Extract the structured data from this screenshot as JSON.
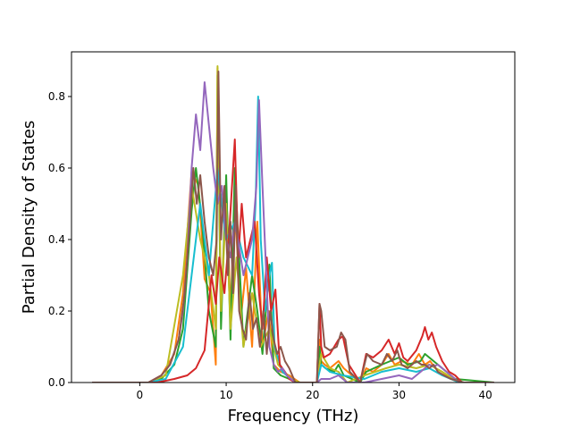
{
  "chart_data": {
    "type": "line",
    "title": "",
    "xlabel": "Frequency (THz)",
    "ylabel": "Partial Density of States",
    "xlim": [
      -7.9,
      43.4
    ],
    "ylim": [
      0.0,
      0.925
    ],
    "xticks": [
      0,
      10,
      20,
      30,
      40
    ],
    "yticks": [
      0.0,
      0.2,
      0.4,
      0.6,
      0.8
    ],
    "xtick_labels": [
      "0",
      "10",
      "20",
      "30",
      "40"
    ],
    "ytick_labels": [
      "0.0",
      "0.2",
      "0.4",
      "0.6",
      "0.8"
    ],
    "grid": false,
    "legend": "none",
    "series": [
      {
        "color": "#ff7f0e",
        "x": [
          -5.5,
          1.0,
          2.5,
          4.0,
          5.0,
          6.0,
          6.8,
          7.5,
          8.2,
          8.8,
          9.0,
          9.4,
          10.0,
          10.5,
          11.0,
          11.7,
          12.3,
          13.0,
          13.6,
          14.2,
          14.9,
          15.5,
          16.3,
          17.3,
          18.5,
          20.5,
          20.8,
          21.0,
          21.4,
          22.0,
          23.0,
          23.6,
          25.5,
          26.2,
          27.0,
          28.0,
          28.8,
          29.5,
          30.3,
          31.5,
          32.3,
          33.0,
          33.6,
          34.2,
          35.0,
          36.0,
          37.0,
          41.0
        ],
        "y": [
          0.0,
          0.0,
          0.02,
          0.08,
          0.25,
          0.59,
          0.55,
          0.29,
          0.25,
          0.05,
          0.88,
          0.2,
          0.55,
          0.2,
          0.5,
          0.18,
          0.32,
          0.1,
          0.45,
          0.1,
          0.2,
          0.05,
          0.03,
          0.02,
          0.0,
          0.0,
          0.12,
          0.06,
          0.05,
          0.04,
          0.06,
          0.04,
          0.0,
          0.04,
          0.03,
          0.05,
          0.08,
          0.05,
          0.06,
          0.05,
          0.08,
          0.05,
          0.06,
          0.04,
          0.03,
          0.01,
          0.0,
          0.0
        ]
      },
      {
        "color": "#2ca02c",
        "x": [
          -5.5,
          1.0,
          2.5,
          4.0,
          5.0,
          6.0,
          6.5,
          7.2,
          8.0,
          8.8,
          9.0,
          9.4,
          10.0,
          10.5,
          11.0,
          12.0,
          13.0,
          13.6,
          14.2,
          15.0,
          15.5,
          16.3,
          17.3,
          18.5,
          20.5,
          20.8,
          21.0,
          21.5,
          22.5,
          23.0,
          23.6,
          25.5,
          26.2,
          28.0,
          29.0,
          30.0,
          31.0,
          32.5,
          33.0,
          34.0,
          35.5,
          36.5,
          41.0
        ],
        "y": [
          0.0,
          0.0,
          0.01,
          0.05,
          0.15,
          0.48,
          0.6,
          0.45,
          0.2,
          0.1,
          0.86,
          0.15,
          0.58,
          0.12,
          0.6,
          0.1,
          0.3,
          0.2,
          0.08,
          0.33,
          0.04,
          0.02,
          0.01,
          0.0,
          0.0,
          0.1,
          0.05,
          0.04,
          0.03,
          0.05,
          0.02,
          0.0,
          0.03,
          0.05,
          0.06,
          0.07,
          0.05,
          0.06,
          0.08,
          0.06,
          0.03,
          0.01,
          0.0
        ]
      },
      {
        "color": "#bcbd22",
        "x": [
          -5.5,
          1.0,
          3.0,
          5.0,
          6.0,
          7.0,
          8.0,
          8.8,
          9.0,
          9.4,
          10.0,
          10.5,
          11.2,
          12.0,
          13.0,
          14.0,
          15.0,
          16.0,
          17.5,
          18.5,
          20.5,
          21.0,
          22.0,
          23.0,
          24.0,
          26.0,
          28.5,
          30.0,
          32.0,
          33.5,
          35.0,
          37.0,
          41.0
        ],
        "y": [
          0.0,
          0.0,
          0.02,
          0.3,
          0.55,
          0.4,
          0.3,
          0.15,
          0.885,
          0.2,
          0.5,
          0.15,
          0.35,
          0.1,
          0.25,
          0.1,
          0.15,
          0.05,
          0.01,
          0.0,
          0.0,
          0.08,
          0.04,
          0.03,
          0.0,
          0.02,
          0.04,
          0.05,
          0.04,
          0.05,
          0.03,
          0.0,
          0.0
        ]
      },
      {
        "color": "#17becf",
        "x": [
          -5.5,
          1.0,
          3.0,
          5.0,
          6.0,
          7.0,
          8.0,
          9.0,
          10.0,
          11.0,
          12.0,
          13.0,
          13.4,
          13.7,
          14.0,
          14.5,
          15.0,
          15.3,
          15.6,
          16.5,
          18.0,
          20.5,
          21.0,
          22.0,
          23.5,
          26.0,
          28.0,
          30.0,
          32.0,
          33.5,
          35.0,
          37.0,
          41.0
        ],
        "y": [
          0.0,
          0.0,
          0.01,
          0.1,
          0.3,
          0.5,
          0.3,
          0.6,
          0.4,
          0.45,
          0.35,
          0.3,
          0.5,
          0.8,
          0.4,
          0.2,
          0.3,
          0.335,
          0.1,
          0.03,
          0.0,
          0.0,
          0.05,
          0.03,
          0.02,
          0.01,
          0.03,
          0.04,
          0.03,
          0.04,
          0.02,
          0.0,
          0.0
        ]
      },
      {
        "color": "#d62728",
        "x": [
          -5.5,
          2.0,
          4.0,
          5.5,
          6.5,
          7.5,
          8.3,
          8.8,
          9.2,
          9.8,
          10.3,
          10.8,
          11.0,
          11.4,
          11.8,
          12.3,
          12.8,
          13.3,
          13.8,
          14.2,
          14.7,
          15.2,
          15.7,
          16.2,
          16.8,
          17.3,
          18.0,
          20.5,
          20.8,
          21.0,
          21.3,
          22.0,
          23.0,
          23.5,
          24.2,
          25.5,
          26.2,
          27.0,
          28.0,
          28.8,
          29.5,
          30.0,
          30.5,
          31.0,
          32.0,
          32.7,
          33.0,
          33.4,
          33.8,
          34.3,
          35.0,
          35.8,
          36.5,
          37.3,
          41.0
        ],
        "y": [
          0.0,
          0.0,
          0.01,
          0.02,
          0.04,
          0.09,
          0.3,
          0.22,
          0.35,
          0.25,
          0.4,
          0.6,
          0.68,
          0.35,
          0.5,
          0.35,
          0.4,
          0.45,
          0.25,
          0.15,
          0.35,
          0.2,
          0.26,
          0.05,
          0.03,
          0.01,
          0.0,
          0.0,
          0.22,
          0.1,
          0.07,
          0.08,
          0.12,
          0.13,
          0.05,
          0.0,
          0.08,
          0.07,
          0.09,
          0.12,
          0.08,
          0.11,
          0.07,
          0.06,
          0.09,
          0.13,
          0.155,
          0.12,
          0.14,
          0.1,
          0.06,
          0.03,
          0.02,
          0.0,
          0.0
        ]
      },
      {
        "color": "#9467bd",
        "x": [
          -5.5,
          1.0,
          2.5,
          3.5,
          4.5,
          5.0,
          5.5,
          6.0,
          6.5,
          7.0,
          7.5,
          8.0,
          8.5,
          9.0,
          9.5,
          10.0,
          10.5,
          11.0,
          11.5,
          12.0,
          12.5,
          13.0,
          13.5,
          13.8,
          14.2,
          15.0,
          15.5,
          16.0,
          16.5,
          17.0,
          17.5,
          18.0,
          20.5,
          21.0,
          22.0,
          23.0,
          24.0,
          26.0,
          28.0,
          30.0,
          31.5,
          32.5,
          33.0,
          33.5,
          34.0,
          34.5,
          35.5,
          36.5,
          37.0,
          41.0
        ],
        "y": [
          0.0,
          0.0,
          0.02,
          0.05,
          0.12,
          0.2,
          0.35,
          0.6,
          0.75,
          0.65,
          0.84,
          0.72,
          0.6,
          0.5,
          0.55,
          0.4,
          0.35,
          0.45,
          0.38,
          0.3,
          0.35,
          0.4,
          0.55,
          0.79,
          0.55,
          0.1,
          0.05,
          0.03,
          0.04,
          0.02,
          0.01,
          0.0,
          0.0,
          0.01,
          0.01,
          0.02,
          0.0,
          0.0,
          0.01,
          0.02,
          0.01,
          0.03,
          0.04,
          0.05,
          0.045,
          0.05,
          0.03,
          0.01,
          0.0,
          0.0
        ]
      },
      {
        "color": "#8c564b",
        "x": [
          -5.5,
          1.0,
          2.5,
          3.5,
          4.5,
          5.2,
          5.8,
          6.2,
          6.6,
          7.0,
          7.5,
          8.0,
          8.5,
          8.9,
          9.1,
          9.4,
          9.8,
          10.2,
          10.5,
          10.8,
          11.1,
          11.5,
          11.9,
          12.3,
          12.7,
          13.1,
          13.5,
          13.9,
          14.3,
          14.7,
          15.1,
          15.5,
          15.9,
          16.3,
          16.8,
          17.3,
          18.0,
          20.5,
          20.8,
          21.0,
          21.4,
          22.0,
          22.8,
          23.3,
          23.8,
          24.3,
          25.5,
          26.0,
          26.3,
          27.0,
          28.0,
          28.6,
          29.2,
          29.8,
          30.3,
          31.0,
          32.0,
          32.6,
          33.0,
          33.5,
          34.0,
          34.5,
          35.2,
          36.0,
          36.8,
          37.5,
          41.0
        ],
        "y": [
          0.0,
          0.0,
          0.02,
          0.05,
          0.12,
          0.25,
          0.45,
          0.6,
          0.5,
          0.58,
          0.45,
          0.35,
          0.3,
          0.4,
          0.87,
          0.4,
          0.55,
          0.3,
          0.45,
          0.25,
          0.55,
          0.2,
          0.15,
          0.12,
          0.25,
          0.15,
          0.18,
          0.1,
          0.2,
          0.08,
          0.2,
          0.12,
          0.08,
          0.1,
          0.06,
          0.04,
          0.0,
          0.0,
          0.22,
          0.2,
          0.1,
          0.09,
          0.1,
          0.14,
          0.12,
          0.03,
          0.0,
          0.05,
          0.08,
          0.06,
          0.05,
          0.08,
          0.06,
          0.09,
          0.05,
          0.04,
          0.06,
          0.05,
          0.05,
          0.04,
          0.05,
          0.03,
          0.02,
          0.01,
          0.005,
          0.0,
          0.0
        ]
      }
    ]
  }
}
